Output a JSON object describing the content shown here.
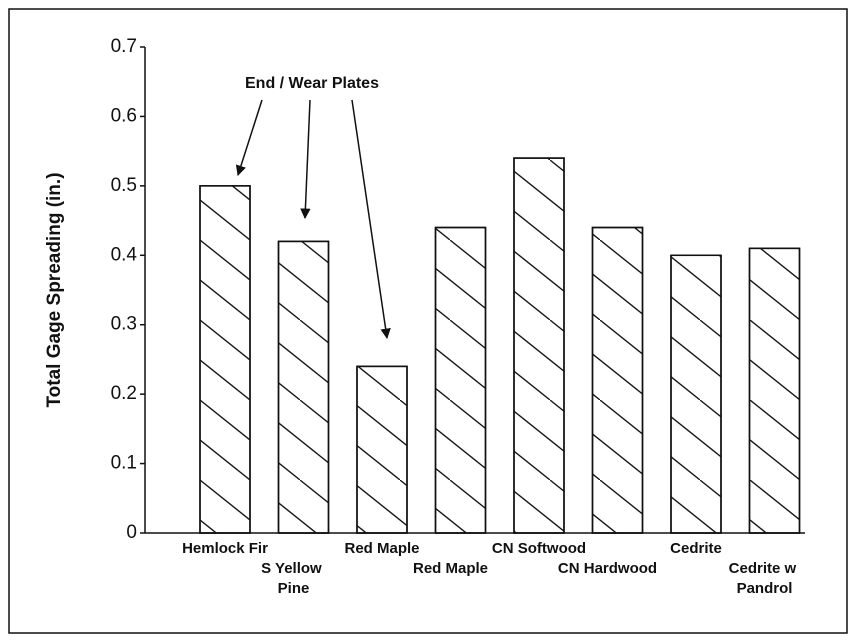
{
  "chart_data": {
    "type": "bar",
    "ylabel": "Total Gage Spreading (in.)",
    "annotation": "End / Wear Plates",
    "categories": [
      "Hemlock Fir",
      "S Yellow Pine",
      "Red Maple",
      "Red Maple",
      "CN Softwood",
      "CN Hardwood",
      "Cedrite",
      "Cedrite w Pandrol"
    ],
    "values": [
      0.5,
      0.42,
      0.24,
      0.44,
      0.54,
      0.44,
      0.4,
      0.41
    ],
    "color": "#ffffff",
    "ylim": [
      0,
      0.7
    ],
    "yticks": [
      0,
      0.1,
      0.2,
      0.3,
      0.4,
      0.5,
      0.6,
      0.7
    ],
    "grid": false
  }
}
